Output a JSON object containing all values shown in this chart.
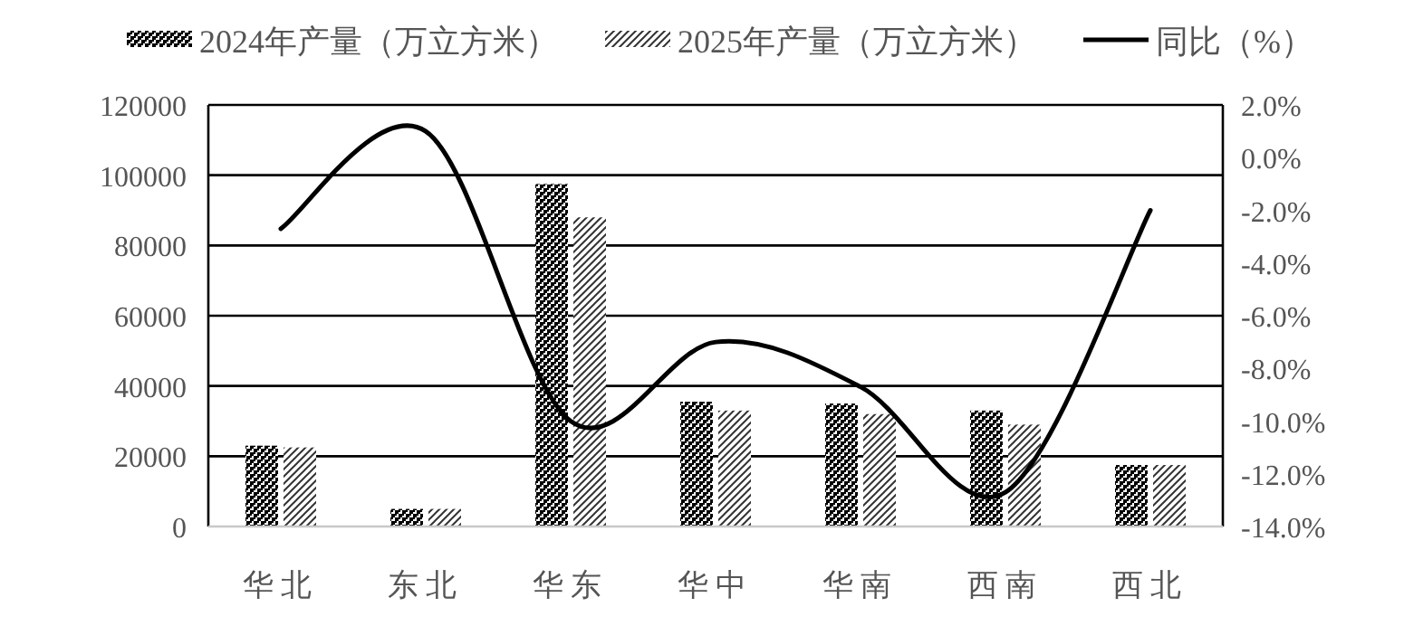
{
  "chart_data": {
    "type": "bar",
    "categories": [
      "华北",
      "东北",
      "华东",
      "华中",
      "华南",
      "西南",
      "西北"
    ],
    "series": [
      {
        "name": "2024年产量（万立方米）",
        "color": "#000000",
        "values": [
          23000,
          5000,
          97500,
          35500,
          35000,
          33000,
          17500
        ]
      },
      {
        "name": "2025年产量（万立方米）",
        "color": "#333333",
        "values": [
          22500,
          5000,
          88000,
          33000,
          32000,
          29000,
          17500
        ]
      },
      {
        "name": "同比（%）",
        "type": "line",
        "axis": "y2",
        "color": "#000000",
        "values": [
          -2.7,
          1.0,
          -10.0,
          -7.0,
          -8.7,
          -12.7,
          -2.0
        ]
      }
    ],
    "ylim": [
      0,
      120000
    ],
    "yticks": [
      0,
      20000,
      40000,
      60000,
      80000,
      100000,
      120000
    ],
    "y2lim": [
      -14,
      2
    ],
    "y2ticks": [
      {
        "value": -14,
        "label": "-14.0%"
      },
      {
        "value": -12,
        "label": "-12.0%"
      },
      {
        "value": -10,
        "label": "-10.0%"
      },
      {
        "value": -8,
        "label": "-8.0%"
      },
      {
        "value": -6,
        "label": "-6.0%"
      },
      {
        "value": -4,
        "label": "-4.0%"
      },
      {
        "value": -2,
        "label": "-2.0%"
      },
      {
        "value": 0,
        "label": "0.0%"
      },
      {
        "value": 2,
        "label": "2.0%"
      }
    ],
    "grid": "y",
    "legend": "top"
  }
}
